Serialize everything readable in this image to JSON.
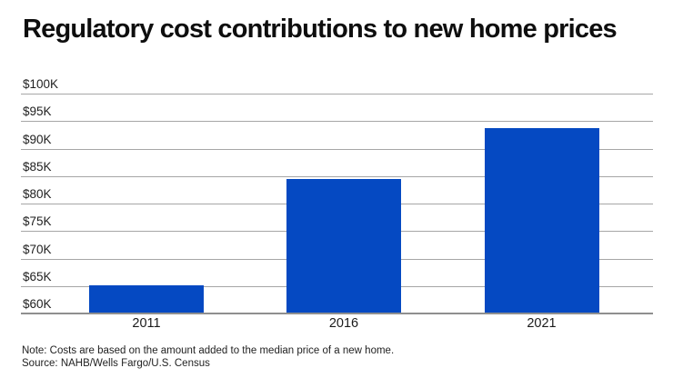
{
  "title": "Regulatory cost contributions to new home prices",
  "note": "Note: Costs are based on the amount added to the median price of a new home.",
  "source": "Source: NAHB/Wells Fargo/U.S. Census",
  "colors": {
    "bar": "#0549C2",
    "gridline": "#a6a6a6",
    "baseline": "#8f8f8f",
    "title_text": "#0e0e0e",
    "label_text": "#1f1f1f"
  },
  "chart_data": {
    "type": "bar",
    "title": "Regulatory cost contributions to new home prices",
    "categories": [
      "2011",
      "2016",
      "2021"
    ],
    "values": [
      65200,
      84500,
      93800
    ],
    "ytick_labels": [
      "$100K",
      "$95K",
      "$90K",
      "$85K",
      "$80K",
      "$75K",
      "$70K",
      "$65K",
      "$60K"
    ],
    "ylim": [
      60000,
      100000
    ],
    "ytick_step": 5000,
    "xlabel": "",
    "ylabel": "",
    "grid": true,
    "legend": "none"
  }
}
